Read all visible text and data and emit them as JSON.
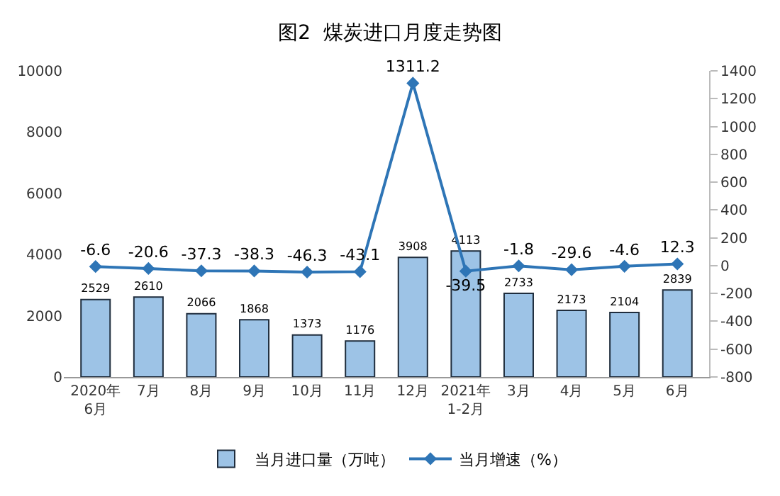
{
  "chart_data": {
    "type": "bar",
    "title": "图2  煤炭进口月度走势图",
    "categories": [
      "2020年\n6月",
      "7月",
      "8月",
      "9月",
      "10月",
      "11月",
      "12月",
      "2021年\n1-2月",
      "3月",
      "4月",
      "5月",
      "6月"
    ],
    "series": [
      {
        "name": "当月进口量（万吨）",
        "color": "#9dc3e6",
        "values": [
          2529,
          2610,
          2066,
          1868,
          1373,
          1176,
          3908,
          4113,
          2733,
          2173,
          2104,
          2839
        ]
      },
      {
        "name": "当月增速（%）",
        "type": "line",
        "axis": "y2",
        "color": "#2e75b6",
        "marker": "diamond",
        "values": [
          -6.6,
          -20.6,
          -37.3,
          -38.3,
          -46.3,
          -43.1,
          1311.2,
          -39.5,
          -1.8,
          -29.6,
          -4.6,
          12.3
        ]
      }
    ],
    "ylim": [
      0,
      10000
    ],
    "yticks": [
      0,
      2000,
      4000,
      6000,
      8000,
      10000
    ],
    "y2lim": [
      -800,
      1400
    ],
    "y2ticks": [
      -800,
      -600,
      -400,
      -200,
      0,
      200,
      400,
      600,
      800,
      1000,
      1200,
      1400
    ],
    "data_labels": true,
    "legend": "bottom",
    "grid": false
  }
}
